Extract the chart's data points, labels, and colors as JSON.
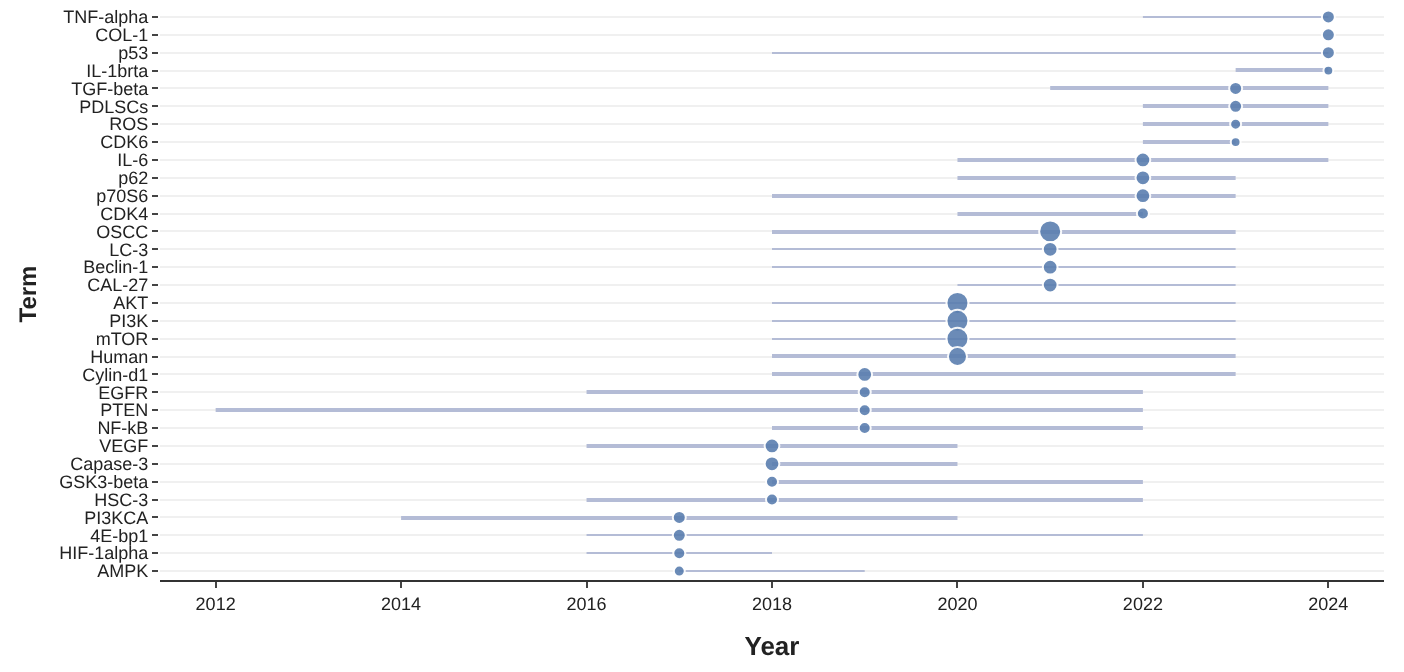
{
  "chart_data": {
    "type": "bar",
    "orientation": "horizontal",
    "xlabel": "Year",
    "ylabel": "Term",
    "grid": "y",
    "categories": [
      "TNF-alpha",
      "COL-1",
      "p53",
      "IL-1brta",
      "TGF-beta",
      "PDLSCs",
      "ROS",
      "CDK6",
      "IL-6",
      "p62",
      "p70S6",
      "CDK4",
      "OSCC",
      "LC-3",
      "Beclin-1",
      "CAL-27",
      "AKT",
      "PI3K",
      "mTOR",
      "Human",
      "Cylin-d1",
      "EGFR",
      "PTEN",
      "NF-kB",
      "VEGF",
      "Capase-3",
      "GSK3-beta",
      "HSC-3",
      "PI3KCA",
      "4E-bp1",
      "HIF-1alpha",
      "AMPK"
    ],
    "xlim": [
      2011.4,
      2024.6
    ],
    "xticks": [
      2012,
      2014,
      2016,
      2018,
      2020,
      2022,
      2024
    ],
    "series": [
      {
        "type": "bar",
        "color": "#b4bcd6",
        "base": [
          2022,
          null,
          2018,
          2023,
          2021,
          2022,
          2022,
          2022,
          2020,
          2020,
          2018,
          2020,
          2018,
          2018,
          2018,
          2020,
          2018,
          2018,
          2018,
          2018,
          2018,
          2016,
          2012,
          2018,
          2016,
          2018,
          2018,
          2016,
          2014,
          2016,
          2016,
          2017
        ],
        "values": [
          2,
          null,
          6,
          1,
          3,
          2,
          2,
          1,
          4,
          3,
          5,
          2,
          5,
          5,
          5,
          3,
          5,
          5,
          5,
          5,
          5,
          6,
          10,
          4,
          4,
          2,
          4,
          6,
          6,
          6,
          2,
          2
        ]
      },
      {
        "type": "bubble",
        "color": "#5b7fb0",
        "values": [
          2024,
          2024,
          2024,
          2024,
          2023,
          2023,
          2023,
          2023,
          2022,
          2022,
          2022,
          2022,
          2021,
          2021,
          2021,
          2021,
          2020,
          2020,
          2020,
          2020,
          2019,
          2019,
          2019,
          2019,
          2018,
          2018,
          2018,
          2018,
          2017,
          2017,
          2017,
          2017
        ],
        "sizes": [
          0.35,
          0.35,
          0.35,
          0.2,
          0.35,
          0.35,
          0.25,
          0.2,
          0.45,
          0.45,
          0.45,
          0.3,
          1,
          0.45,
          0.45,
          0.45,
          1,
          1,
          1,
          0.75,
          0.45,
          0.3,
          0.3,
          0.3,
          0.45,
          0.45,
          0.3,
          0.3,
          0.35,
          0.35,
          0.3,
          0.25
        ]
      }
    ]
  }
}
